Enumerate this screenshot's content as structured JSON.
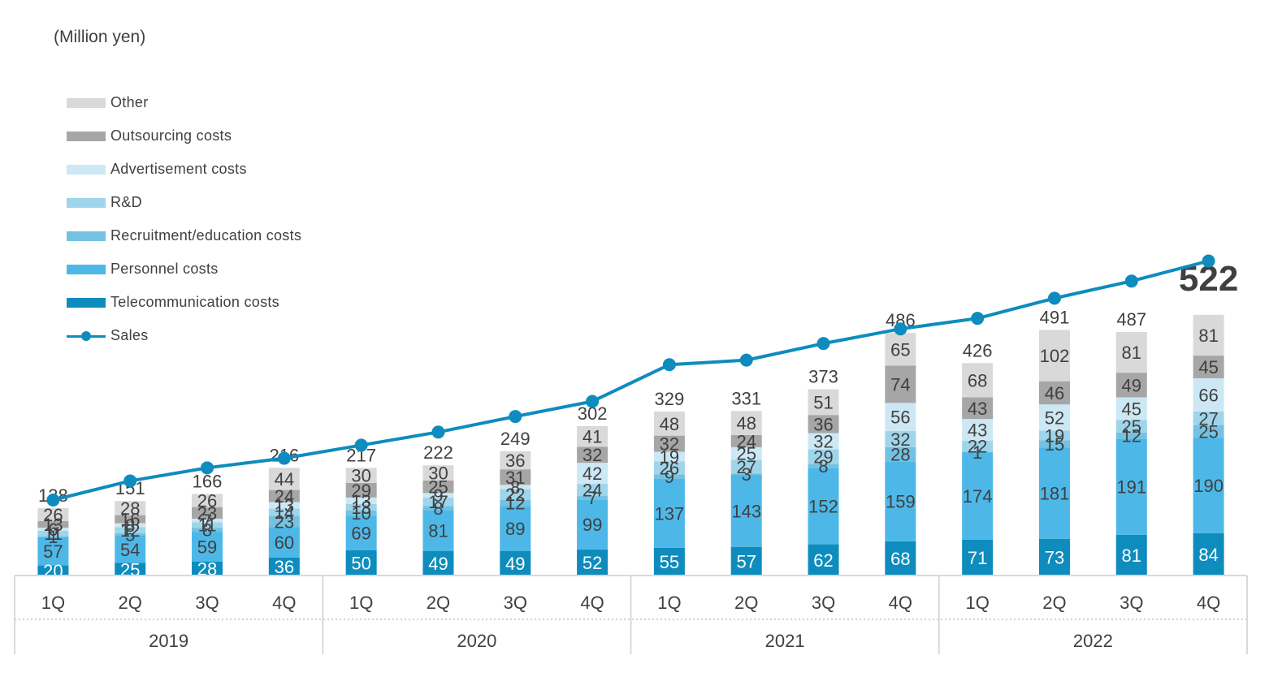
{
  "unit_label": "(Million yen)",
  "legend": [
    {
      "label": "Other",
      "color": "#D9D9D9",
      "kind": "bar"
    },
    {
      "label": "Outsourcing costs",
      "color": "#A6A6A6",
      "kind": "bar"
    },
    {
      "label": "Advertisement costs",
      "color": "#CCE8F4",
      "kind": "bar"
    },
    {
      "label": "R&D",
      "color": "#9FD5EA",
      "kind": "bar"
    },
    {
      "label": "Recruitment/education costs",
      "color": "#73C2E2",
      "kind": "bar"
    },
    {
      "label": "Personnel costs",
      "color": "#4DB8E8",
      "kind": "bar"
    },
    {
      "label": "Telecommunication costs",
      "color": "#0E8CBE",
      "kind": "bar"
    },
    {
      "label": "Sales",
      "color": "#0E8CBE",
      "kind": "line"
    }
  ],
  "chart_data": {
    "type": "bar",
    "stacked": true,
    "categories": [
      "1Q",
      "2Q",
      "3Q",
      "4Q",
      "1Q",
      "2Q",
      "3Q",
      "4Q",
      "1Q",
      "2Q",
      "3Q",
      "4Q",
      "1Q",
      "2Q",
      "3Q",
      "4Q"
    ],
    "years": [
      "2019",
      "2020",
      "2021",
      "2022"
    ],
    "series": [
      {
        "name": "Telecommunication costs",
        "color": "#0E8CBE",
        "label_color": "#FFFFFF",
        "values": [
          20,
          25,
          28,
          36,
          50,
          49,
          49,
          52,
          55,
          57,
          62,
          68,
          71,
          73,
          81,
          84
        ]
      },
      {
        "name": "Personnel costs",
        "color": "#4DB8E8",
        "label_color": "#404040",
        "values": [
          57,
          54,
          59,
          60,
          69,
          81,
          89,
          99,
          137,
          143,
          152,
          159,
          174,
          181,
          191,
          190
        ]
      },
      {
        "name": "Recruitment/education costs",
        "color": "#73C2E2",
        "label_color": "#404040",
        "values": [
          1,
          5,
          8,
          23,
          10,
          8,
          12,
          7,
          9,
          3,
          8,
          28,
          1,
          15,
          12,
          25
        ]
      },
      {
        "name": "R&D",
        "color": "#9FD5EA",
        "label_color": "#404040",
        "values": [
          11,
          12,
          11,
          14,
          13,
          17,
          22,
          24,
          26,
          27,
          29,
          32,
          22,
          19,
          25,
          27
        ]
      },
      {
        "name": "Advertisement costs",
        "color": "#CCE8F4",
        "label_color": "#404040",
        "values": [
          6,
          8,
          7,
          13,
          13,
          9,
          8,
          42,
          19,
          25,
          32,
          56,
          43,
          52,
          45,
          66
        ]
      },
      {
        "name": "Outsourcing costs",
        "color": "#A6A6A6",
        "label_color": "#404040",
        "values": [
          13,
          16,
          23,
          24,
          29,
          25,
          31,
          32,
          32,
          24,
          36,
          74,
          43,
          46,
          49,
          45
        ]
      },
      {
        "name": "Other",
        "color": "#D9D9D9",
        "label_color": "#404040",
        "values": [
          26,
          28,
          26,
          44,
          30,
          30,
          36,
          41,
          48,
          48,
          51,
          65,
          68,
          102,
          81,
          81
        ]
      }
    ],
    "totals": [
      138,
      151,
      166,
      216,
      217,
      222,
      249,
      302,
      329,
      331,
      373,
      486,
      426,
      491,
      487,
      522
    ],
    "highlight_total_index": 15,
    "sales": {
      "name": "Sales",
      "color": "#0E8CBE",
      "values": [
        150,
        188,
        214,
        233,
        259,
        285,
        316,
        346,
        419,
        428,
        461,
        490,
        511,
        551,
        585,
        625
      ]
    },
    "ylim": [
      0,
      700
    ]
  }
}
